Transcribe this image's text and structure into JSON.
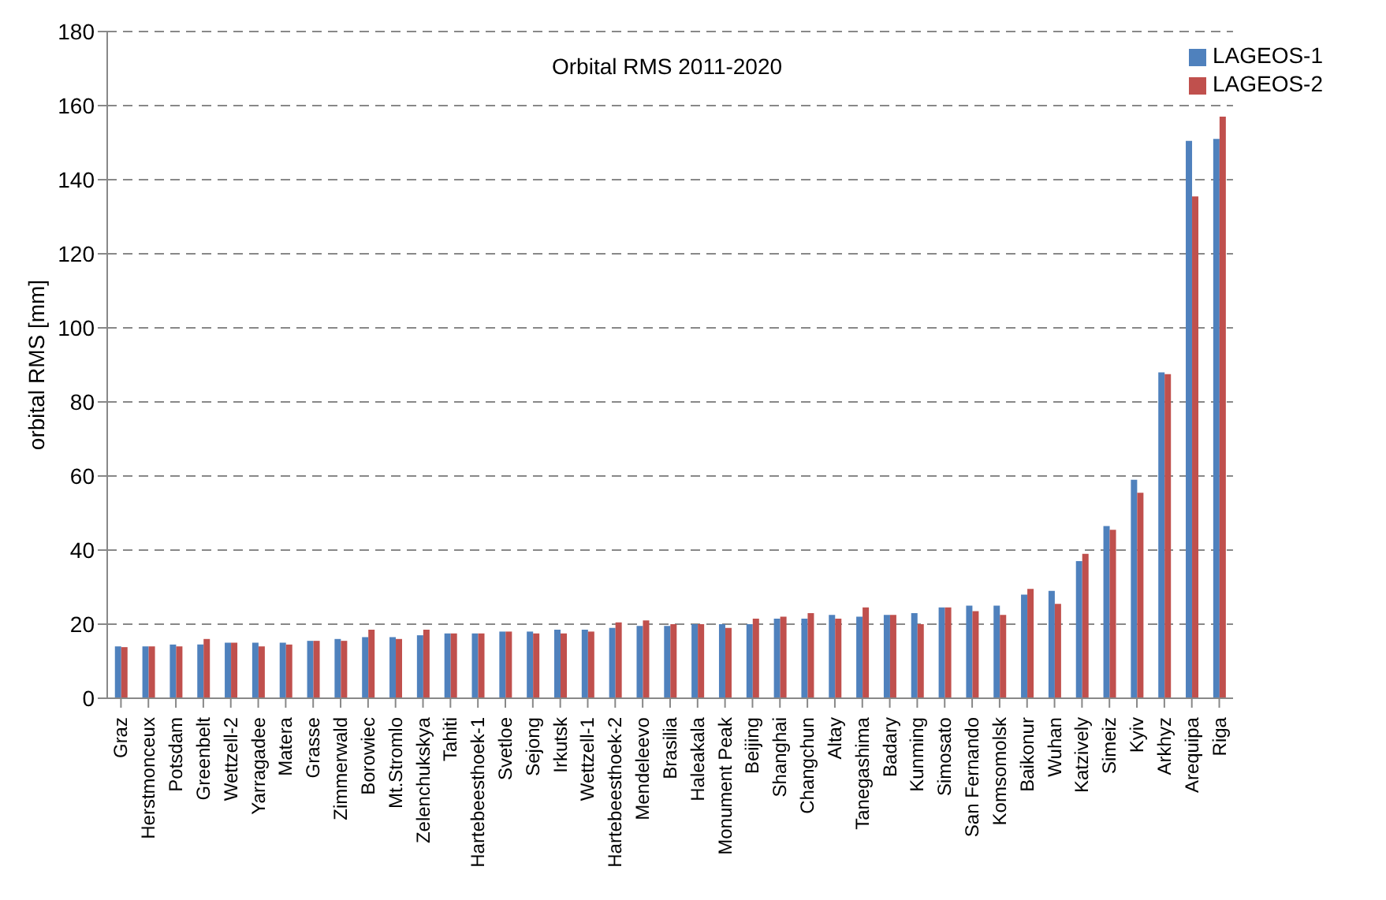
{
  "chart_data": {
    "type": "bar",
    "title": "Orbital RMS 2011-2020",
    "ylabel": "orbital RMS [mm]",
    "categories": [
      "Graz",
      "Herstmonceux",
      "Potsdam",
      "Greenbelt",
      "Wettzell-2",
      "Yarragadee",
      "Matera",
      "Grasse",
      "Zimmerwald",
      "Borowiec",
      "Mt.Stromlo",
      "Zelenchukskya",
      "Tahiti",
      "Hartebeesthoek-1",
      "Svetloe",
      "Sejong",
      "Irkutsk",
      "Wettzell-1",
      "Hartebeesthoek-2",
      "Mendeleevo",
      "Brasilia",
      "Haleakala",
      "Monument Peak",
      "Beijing",
      "Shanghai",
      "Changchun",
      "Altay",
      "Tanegashima",
      "Badary",
      "Kunming",
      "Simosato",
      "San Fernando",
      "Komsomolsk",
      "Baikonur",
      "Wuhan",
      "Katzively",
      "Simeiz",
      "Kyiv",
      "Arkhyz",
      "Arequipa",
      "Riga"
    ],
    "series": [
      {
        "name": "LAGEOS-1",
        "color": "#4f81bd",
        "values": [
          14,
          14,
          14.5,
          14.5,
          15,
          15,
          15,
          15.5,
          16,
          16.5,
          16.5,
          17,
          17.5,
          17.5,
          18,
          18,
          18.5,
          18.5,
          19,
          19.5,
          19.5,
          20,
          20,
          20,
          21.5,
          21.5,
          22.5,
          22,
          22.5,
          23,
          24.5,
          25,
          25,
          28,
          29,
          37,
          46.5,
          59,
          88,
          150.5,
          151
        ]
      },
      {
        "name": "LAGEOS-2",
        "color": "#c0504d",
        "values": [
          13.8,
          14,
          14,
          16,
          15,
          14,
          14.5,
          15.5,
          15.5,
          18.5,
          16,
          18.5,
          17.5,
          17.5,
          18,
          17.5,
          17.5,
          18,
          20.5,
          21,
          20,
          20,
          19,
          21.5,
          22,
          23,
          21.5,
          24.5,
          22.5,
          20,
          24.5,
          23.5,
          22.5,
          29.5,
          25.5,
          39,
          45.5,
          55.5,
          87.5,
          135.5,
          157
        ]
      }
    ],
    "ylim": [
      0,
      180
    ],
    "yticks": [
      0,
      20,
      40,
      60,
      80,
      100,
      120,
      140,
      160,
      180
    ],
    "grid": "y",
    "legend": "top right"
  }
}
